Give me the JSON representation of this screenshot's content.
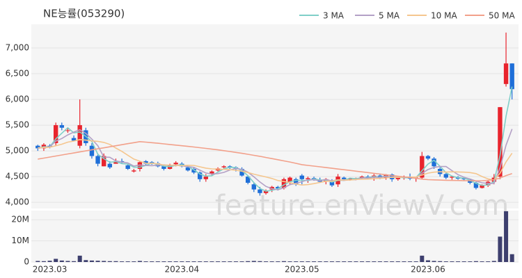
{
  "chart_data": {
    "type": "candlestick",
    "title": "NE능률(053290)",
    "watermark": "feature.enViewV.com",
    "categories": [
      null,
      null,
      "2023.03",
      null,
      null,
      null,
      null,
      null,
      null,
      null,
      null,
      null,
      null,
      null,
      null,
      null,
      null,
      null,
      null,
      null,
      null,
      null,
      null,
      null,
      "2023.04",
      null,
      null,
      null,
      null,
      null,
      null,
      null,
      null,
      null,
      null,
      null,
      null,
      null,
      null,
      null,
      null,
      null,
      null,
      null,
      "2023.05",
      null,
      null,
      null,
      null,
      null,
      null,
      null,
      null,
      null,
      null,
      null,
      null,
      null,
      null,
      null,
      null,
      null,
      null,
      null,
      null,
      "2023.06",
      null,
      null,
      null,
      null,
      null,
      null,
      null,
      null,
      null,
      null,
      null,
      null,
      null,
      null
    ],
    "open": [
      5100,
      5050,
      5100,
      5150,
      5500,
      5400,
      5250,
      5100,
      5400,
      5100,
      4900,
      4700,
      4750,
      4750,
      4800,
      4720,
      4600,
      4650,
      4800,
      4780,
      4760,
      4700,
      4650,
      4740,
      4750,
      4680,
      4650,
      4580,
      4450,
      4550,
      4620,
      4680,
      4700,
      4680,
      4650,
      4500,
      4350,
      4250,
      4180,
      4250,
      4300,
      4280,
      4400,
      4450,
      4520,
      4450,
      4470,
      4440,
      4400,
      4430,
      4350,
      4480,
      4450,
      4460,
      4470,
      4500,
      4480,
      4520,
      4470,
      4540,
      4450,
      4480,
      4500,
      4460,
      4480,
      4900,
      4850,
      4650,
      4550,
      4480,
      4490,
      4460,
      4440,
      4380,
      4280,
      4330,
      4400,
      4500,
      6300,
      6700
    ],
    "high": [
      5120,
      5150,
      5130,
      5550,
      5550,
      5450,
      5300,
      6000,
      5450,
      5150,
      4950,
      4950,
      4800,
      4850,
      4850,
      4750,
      4650,
      4800,
      4820,
      4800,
      4790,
      4720,
      4750,
      4800,
      4780,
      4700,
      4680,
      4600,
      4550,
      4620,
      4680,
      4720,
      4720,
      4700,
      4680,
      4520,
      4380,
      4300,
      4250,
      4320,
      4320,
      4480,
      4500,
      4480,
      4550,
      4500,
      4500,
      4480,
      4470,
      4450,
      4550,
      4500,
      4480,
      4480,
      4520,
      4530,
      4550,
      4560,
      4550,
      4560,
      4500,
      4520,
      4560,
      4500,
      4980,
      4920,
      4880,
      4680,
      4580,
      4520,
      4510,
      4480,
      4460,
      4400,
      4350,
      4420,
      4550,
      5850,
      7300,
      6700
    ],
    "low": [
      5000,
      5000,
      5050,
      5100,
      5400,
      5350,
      5200,
      5050,
      5100,
      4850,
      4700,
      4700,
      4650,
      4750,
      4750,
      4630,
      4580,
      4600,
      4720,
      4730,
      4680,
      4620,
      4640,
      4700,
      4680,
      4600,
      4550,
      4400,
      4400,
      4520,
      4600,
      4650,
      4650,
      4600,
      4500,
      4350,
      4200,
      4130,
      4150,
      4200,
      4230,
      4250,
      4350,
      4320,
      4350,
      4380,
      4420,
      4380,
      4350,
      4300,
      4300,
      4420,
      4420,
      4430,
      4440,
      4460,
      4420,
      4450,
      4440,
      4400,
      4420,
      4440,
      4430,
      4400,
      4450,
      4820,
      4650,
      4500,
      4450,
      4440,
      4440,
      4420,
      4350,
      4250,
      4270,
      4300,
      4350,
      4450,
      6250,
      6000
    ],
    "close": [
      5050,
      5120,
      5080,
      5500,
      5450,
      5400,
      5200,
      5500,
      5150,
      4900,
      4750,
      4900,
      4680,
      4800,
      4780,
      4650,
      4620,
      4780,
      4750,
      4760,
      4700,
      4650,
      4730,
      4770,
      4700,
      4620,
      4580,
      4450,
      4500,
      4600,
      4660,
      4700,
      4680,
      4650,
      4520,
      4380,
      4250,
      4180,
      4220,
      4300,
      4270,
      4450,
      4480,
      4350,
      4450,
      4470,
      4440,
      4400,
      4450,
      4330,
      4500,
      4450,
      4460,
      4470,
      4500,
      4480,
      4520,
      4470,
      4540,
      4450,
      4480,
      4500,
      4460,
      4480,
      4900,
      4850,
      4700,
      4550,
      4480,
      4500,
      4460,
      4450,
      4380,
      4280,
      4330,
      4400,
      4480,
      5850,
      6700,
      6200
    ],
    "up_color": "#e8242d",
    "down_color": "#1f6fd8",
    "ylim": [
      3880,
      7460
    ],
    "yticks": [
      {
        "value": 4000,
        "label": "4,000"
      },
      {
        "value": 4500,
        "label": "4,500"
      },
      {
        "value": 5000,
        "label": "5,000"
      },
      {
        "value": 5500,
        "label": "5,500"
      },
      {
        "value": 6000,
        "label": "6,000"
      },
      {
        "value": 6500,
        "label": "6,500"
      },
      {
        "value": 7000,
        "label": "7,000"
      }
    ],
    "grid": true,
    "legend": "top-right",
    "series": [
      {
        "name": "3 MA",
        "color": "#7fcfc8",
        "values": [
          5050,
          5080,
          5083,
          5233,
          5343,
          5450,
          5350,
          5367,
          5283,
          5183,
          4933,
          4850,
          4777,
          4793,
          4753,
          4743,
          4683,
          4683,
          4717,
          4763,
          4737,
          4703,
          4693,
          4717,
          4733,
          4697,
          4633,
          4550,
          4510,
          4517,
          4587,
          4653,
          4680,
          4677,
          4617,
          4517,
          4383,
          4270,
          4217,
          4233,
          4263,
          4340,
          4400,
          4427,
          4427,
          4423,
          4453,
          4437,
          4430,
          4393,
          4427,
          4427,
          4470,
          4460,
          4477,
          4483,
          4500,
          4490,
          4510,
          4487,
          4490,
          4477,
          4480,
          4480,
          4613,
          4743,
          4817,
          4700,
          4577,
          4510,
          4480,
          4470,
          4430,
          4370,
          4330,
          4337,
          4403,
          4910,
          5677,
          6250
        ]
      },
      {
        "name": "5 MA",
        "color": "#b3a0c6",
        "values": [
          5050,
          5070,
          5080,
          5190,
          5240,
          5310,
          5366,
          5410,
          5340,
          5230,
          5100,
          4880,
          4876,
          4806,
          4782,
          4766,
          4706,
          4726,
          4716,
          4712,
          4722,
          4728,
          4718,
          4722,
          4710,
          4694,
          4680,
          4624,
          4570,
          4550,
          4558,
          4582,
          4628,
          4658,
          4642,
          4586,
          4496,
          4396,
          4310,
          4266,
          4244,
          4284,
          4344,
          4370,
          4400,
          4440,
          4438,
          4422,
          4442,
          4418,
          4438,
          4426,
          4438,
          4442,
          4476,
          4472,
          4486,
          4488,
          4502,
          4492,
          4492,
          4488,
          4486,
          4474,
          4564,
          4638,
          4678,
          4696,
          4696,
          4616,
          4538,
          4488,
          4454,
          4414,
          4380,
          4368,
          4368,
          4668,
          5112,
          5426
        ]
      },
      {
        "name": "10 MA",
        "color": "#f5c68e",
        "values": [
          5060,
          5065,
          5070,
          5100,
          5130,
          5170,
          5190,
          5220,
          5210,
          5195,
          5185,
          5165,
          5125,
          5055,
          4990,
          4915,
          4840,
          4800,
          4760,
          4755,
          4750,
          4725,
          4725,
          4720,
          4712,
          4720,
          4718,
          4690,
          4665,
          4650,
          4646,
          4640,
          4635,
          4623,
          4605,
          4580,
          4547,
          4520,
          4494,
          4464,
          4425,
          4404,
          4384,
          4354,
          4336,
          4345,
          4364,
          4386,
          4409,
          4412,
          4435,
          4435,
          4433,
          4445,
          4450,
          4451,
          4459,
          4466,
          4475,
          4487,
          4485,
          4490,
          4490,
          4491,
          4531,
          4568,
          4586,
          4594,
          4588,
          4593,
          4591,
          4586,
          4578,
          4558,
          4501,
          4456,
          4434,
          4564,
          4786,
          4956
        ]
      },
      {
        "name": "50 MA",
        "color": "#f2a08a",
        "values": [
          4840,
          4860,
          4880,
          4900,
          4920,
          4940,
          4960,
          4980,
          5000,
          5020,
          5040,
          5060,
          5080,
          5100,
          5120,
          5140,
          5160,
          5180,
          5170,
          5160,
          5148,
          5136,
          5124,
          5112,
          5100,
          5088,
          5076,
          5062,
          5048,
          5034,
          5020,
          5004,
          4988,
          4970,
          4952,
          4934,
          4914,
          4894,
          4872,
          4850,
          4828,
          4806,
          4784,
          4758,
          4732,
          4718,
          4704,
          4690,
          4676,
          4662,
          4648,
          4634,
          4620,
          4606,
          4592,
          4578,
          4564,
          4550,
          4536,
          4522,
          4508,
          4494,
          4480,
          4466,
          4452,
          4440,
          4436,
          4432,
          4428,
          4426,
          4424,
          4422,
          4420,
          4418,
          4420,
          4428,
          4440,
          4470,
          4520,
          4560
        ]
      }
    ],
    "volume": {
      "color": "#3d3f6e",
      "ylim": [
        0,
        24300000
      ],
      "yticks": [
        0,
        {
          "value": 10000000,
          "label": "10M"
        },
        {
          "value": 20000000,
          "label": "20M"
        }
      ],
      "values": [
        500000,
        400000,
        600000,
        1500000,
        700000,
        500000,
        400000,
        3000000,
        900000,
        700000,
        600000,
        500000,
        400000,
        400000,
        300000,
        300000,
        300000,
        500000,
        300000,
        300000,
        300000,
        300000,
        300000,
        300000,
        300000,
        300000,
        300000,
        300000,
        300000,
        300000,
        300000,
        300000,
        300000,
        300000,
        300000,
        400000,
        500000,
        400000,
        300000,
        300000,
        300000,
        400000,
        300000,
        300000,
        300000,
        300000,
        300000,
        300000,
        300000,
        300000,
        300000,
        300000,
        300000,
        300000,
        300000,
        300000,
        300000,
        300000,
        300000,
        300000,
        300000,
        300000,
        300000,
        300000,
        3000000,
        800000,
        500000,
        400000,
        300000,
        300000,
        300000,
        300000,
        300000,
        400000,
        300000,
        300000,
        500000,
        12000000,
        24000000,
        3700000
      ]
    }
  }
}
